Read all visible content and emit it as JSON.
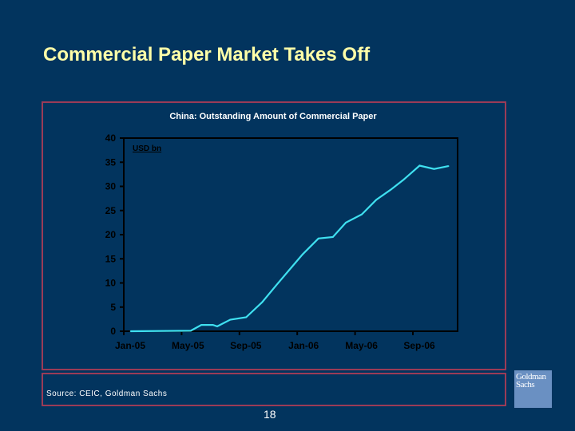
{
  "slide": {
    "title": "Commercial Paper Market Takes Off",
    "source": "Source:  CEIC, Goldman Sachs",
    "page_number": "18",
    "logo_text": "Goldman Sachs"
  },
  "colors": {
    "background": "#02345e",
    "title": "#ffffa8",
    "frame": "#9b3b57",
    "line": "#3fe0f0",
    "logo": "#6a90c2"
  },
  "chart_data": {
    "type": "line",
    "title": "China: Outstanding Amount of Commercial Paper",
    "ylabel": "USD bn",
    "ylim": [
      0,
      40
    ],
    "yticks": [
      "0",
      "5",
      "10",
      "15",
      "20",
      "25",
      "30",
      "35",
      "40"
    ],
    "xlim": [
      "2005-01",
      "2006-11"
    ],
    "xticks": [
      "Jan-05",
      "May-05",
      "Sep-05",
      "Jan-06",
      "May-06",
      "Sep-06"
    ],
    "grid": false,
    "series": [
      {
        "x": [
          "2005-01-15",
          "2005-05-20",
          "2005-06-12",
          "2005-07-06",
          "2005-07-15",
          "2005-08-12",
          "2005-09-15",
          "2005-10-18",
          "2005-11-18",
          "2005-12-12",
          "2006-01-12",
          "2006-02-15",
          "2006-03-15",
          "2006-04-12",
          "2006-05-15",
          "2006-06-15",
          "2006-07-15",
          "2006-08-12",
          "2006-09-15",
          "2006-10-15",
          "2006-11-15"
        ],
        "values": [
          0,
          0.1,
          1.3,
          1.3,
          1.0,
          2.4,
          2.9,
          6.0,
          9.6,
          12.4,
          15.9,
          19.2,
          19.5,
          22.5,
          24.2,
          27.2,
          29.3,
          31.4,
          34.3,
          33.6,
          34.2
        ]
      }
    ]
  }
}
